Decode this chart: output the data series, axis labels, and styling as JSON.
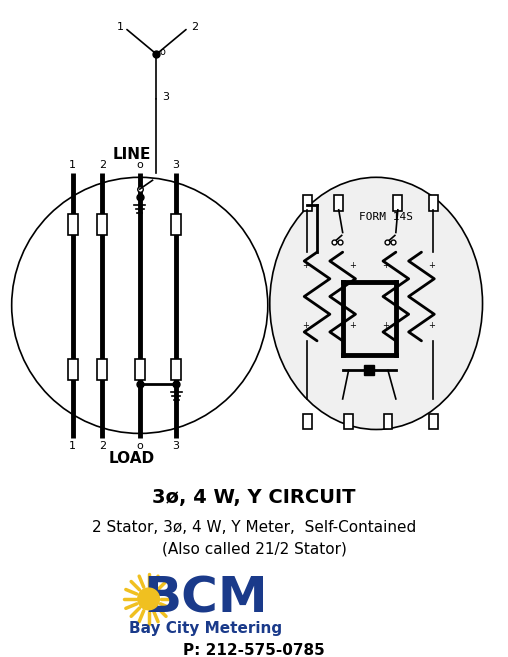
{
  "title_line1": "3ø, 4 W, Y CIRCUIT",
  "title_line2": "2 Stator, 3ø, 4 W, Y Meter,  Self-Contained",
  "title_line3": "(Also called 21/2 Stator)",
  "bcm_text": "BCM",
  "bcm_sub": "Bay City Metering",
  "phone": "P: 212-575-0785",
  "line_label": "LINE",
  "load_label": "LOAD",
  "form_label": "FORM 14S",
  "bg_color": "#ffffff",
  "black": "#000000",
  "blue_dark": "#1a3a8a",
  "yellow": "#f0c020"
}
